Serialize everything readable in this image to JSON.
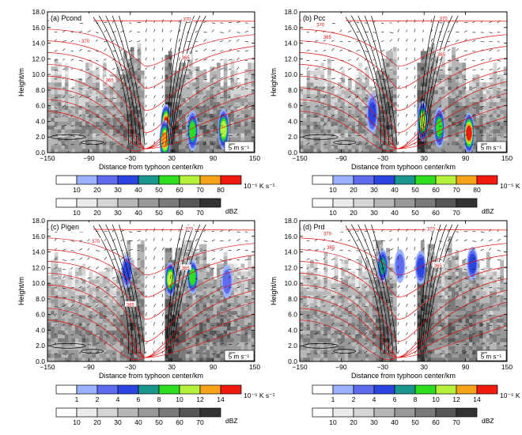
{
  "figure": {
    "heating_colors": [
      "#ffffff",
      "#9bb3ff",
      "#5f6cf0",
      "#2b46e0",
      "#19968f",
      "#2ede1e",
      "#b6ef3c",
      "#f7a21b",
      "#f21a0e"
    ],
    "reflectivity_colors": [
      "#ffffff",
      "#ebebeb",
      "#d5d5d5",
      "#b7b7b7",
      "#999999",
      "#7a7a7a",
      "#575757",
      "#333333",
      "#000000"
    ],
    "colorbars_top": {
      "heating": {
        "ticks": [
          "10",
          "20",
          "30",
          "40",
          "50",
          "60",
          "70",
          "80"
        ],
        "unit": "10⁻⁵ K s⁻¹"
      },
      "reflectivity": {
        "ticks": [
          "10",
          "20",
          "30",
          "40",
          "50",
          "60",
          "70"
        ],
        "unit": "dBZ"
      }
    },
    "colorbars_bottom": {
      "heating": {
        "ticks": [
          "1",
          "2",
          "4",
          "6",
          "8",
          "10",
          "12",
          "14"
        ],
        "unit": "10⁻⁵ K s⁻¹"
      },
      "reflectivity": {
        "ticks": [
          "10",
          "20",
          "30",
          "40",
          "50",
          "60",
          "70"
        ],
        "unit": "dBZ"
      }
    }
  },
  "chart_data": [
    {
      "type": "heatmap",
      "panel_label": "(a)  Pcond",
      "xlabel": "Distance from typhoon center/km",
      "ylabel": "Height/m",
      "xlim": [
        -150,
        150
      ],
      "ylim": [
        0,
        18
      ],
      "xticks": [
        "−150",
        "−90",
        "−30",
        "30",
        "90",
        "150"
      ],
      "yticks": [
        "0.0",
        "2.0",
        "4.0",
        "6.0",
        "8.0",
        "10.0",
        "12.0",
        "14.0",
        "16.0",
        "18.0"
      ],
      "vector_ref_label": "5 m s⁻¹",
      "theta_contour_labels": [
        {
          "text": "370",
          "x": -95,
          "y": 14.3
        },
        {
          "text": "365",
          "x": -60,
          "y": 9.3
        },
        {
          "text": "370",
          "x": 52,
          "y": 17.1
        },
        {
          "text": "365",
          "x": 50,
          "y": 12.2
        }
      ],
      "heating_maxima": [
        {
          "x": 22,
          "y": 3.6,
          "level": 8
        },
        {
          "x": 20,
          "y": 1.6,
          "level": 7
        },
        {
          "x": 60,
          "y": 2.8,
          "level": 5
        },
        {
          "x": 105,
          "y": 3.0,
          "level": 6
        }
      ]
    },
    {
      "type": "heatmap",
      "panel_label": "(b)  Pcc",
      "xlabel": "Distance from typhoon center/km",
      "ylabel": "Height/m",
      "xlim": [
        -150,
        150
      ],
      "ylim": [
        0,
        18
      ],
      "xticks": [
        "−150",
        "−90",
        "−30",
        "30",
        "90",
        "150"
      ],
      "yticks": [
        "0.0",
        "2.0",
        "4.0",
        "6.0",
        "8.0",
        "10.0",
        "12.0",
        "14.0",
        "16.0",
        "18.0"
      ],
      "vector_ref_label": "5 m s⁻¹",
      "theta_contour_labels": [
        {
          "text": "370",
          "x": -120,
          "y": 16.4
        },
        {
          "text": "365",
          "x": -110,
          "y": 14.8
        },
        {
          "text": "370",
          "x": 58,
          "y": 17.2
        },
        {
          "text": "365",
          "x": 55,
          "y": 12.6
        }
      ],
      "heating_maxima": [
        {
          "x": 28,
          "y": 4.0,
          "level": 6
        },
        {
          "x": 52,
          "y": 3.2,
          "level": 5
        },
        {
          "x": 95,
          "y": 2.5,
          "level": 8
        },
        {
          "x": -45,
          "y": 5.0,
          "level": 3
        }
      ]
    },
    {
      "type": "heatmap",
      "panel_label": "(c)  Pigen",
      "xlabel": "Distance from typhoon center/km",
      "ylabel": "Height/m",
      "xlim": [
        -150,
        150
      ],
      "ylim": [
        0,
        18
      ],
      "xticks": [
        "−150",
        "−90",
        "−30",
        "30",
        "90",
        "150"
      ],
      "yticks": [
        "0.0",
        "2.0",
        "4.0",
        "6.0",
        "8.0",
        "10.0",
        "12.0",
        "14.0",
        "16.0",
        "18.0"
      ],
      "vector_ref_label": "5 m s⁻¹",
      "theta_contour_labels": [
        {
          "text": "370",
          "x": -80,
          "y": 15.4
        },
        {
          "text": "365",
          "x": -30,
          "y": 7.3
        },
        {
          "text": "370",
          "x": 55,
          "y": 17.0
        },
        {
          "text": "365",
          "x": 50,
          "y": 12.0
        }
      ],
      "heating_maxima": [
        {
          "x": 28,
          "y": 10.5,
          "level": 6
        },
        {
          "x": 60,
          "y": 10.8,
          "level": 5
        },
        {
          "x": -35,
          "y": 11.5,
          "level": 3
        },
        {
          "x": 110,
          "y": 10.2,
          "level": 2
        }
      ]
    },
    {
      "type": "heatmap",
      "panel_label": "(d)  Prd",
      "xlabel": "Distance from typhoon center/km",
      "ylabel": "Height/m",
      "xlim": [
        -150,
        150
      ],
      "ylim": [
        0,
        18
      ],
      "xticks": [
        "−150",
        "−90",
        "−30",
        "30",
        "90",
        "150"
      ],
      "yticks": [
        "0.0",
        "2.0",
        "4.0",
        "6.0",
        "8.0",
        "10.0",
        "12.0",
        "14.0",
        "16.0",
        "18.0"
      ],
      "vector_ref_label": "5 m s⁻¹",
      "theta_contour_labels": [
        {
          "text": "370",
          "x": -110,
          "y": 16.4
        },
        {
          "text": "365",
          "x": -105,
          "y": 14.6
        },
        {
          "text": "370",
          "x": 40,
          "y": 17.0
        },
        {
          "text": "365",
          "x": 50,
          "y": 12.3
        }
      ],
      "heating_maxima": [
        {
          "x": -30,
          "y": 12.2,
          "level": 4
        },
        {
          "x": 25,
          "y": 12.0,
          "level": 3
        },
        {
          "x": 100,
          "y": 12.5,
          "level": 3
        },
        {
          "x": -5,
          "y": 12.2,
          "level": 2
        }
      ]
    }
  ]
}
